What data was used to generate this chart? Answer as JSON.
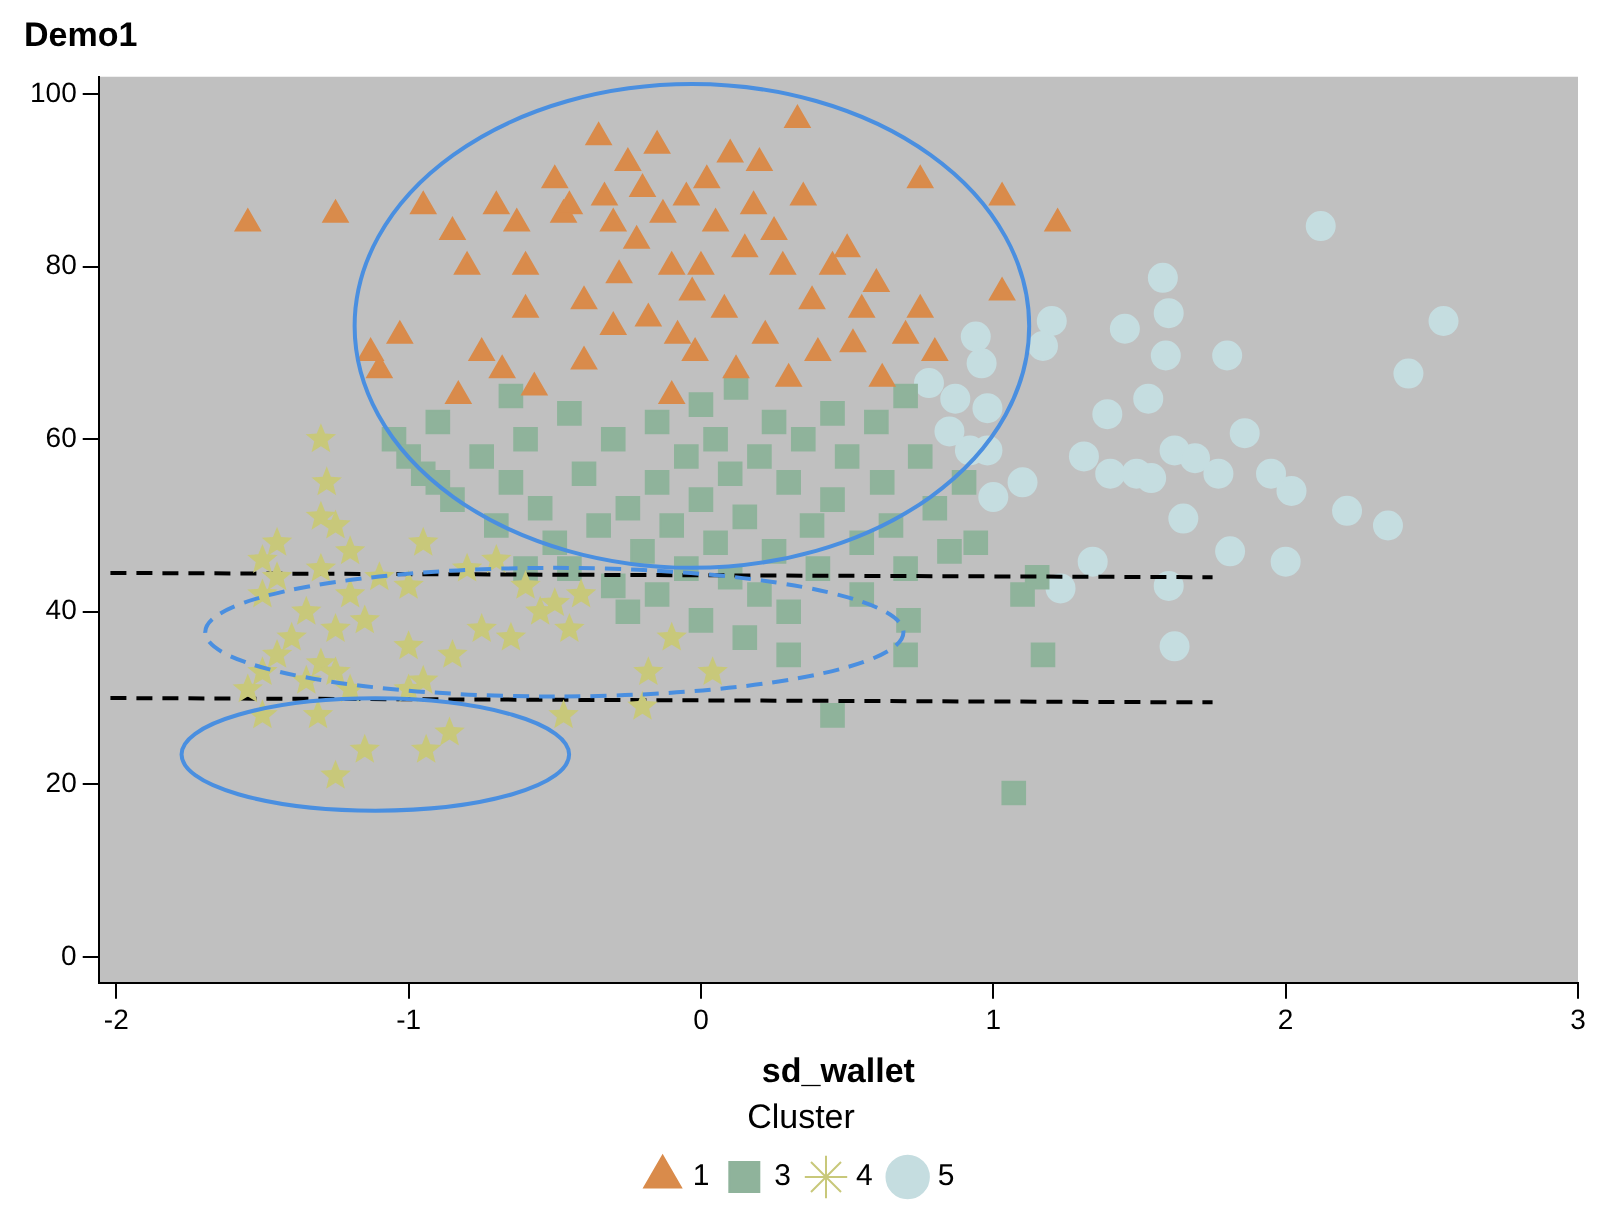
{
  "chart_data": {
    "type": "scatter",
    "title": "Demo1",
    "xlabel": "sd_wallet",
    "legend_title": "Cluster",
    "legend": "bottom",
    "grid": false,
    "xlim": [
      -2.06,
      3.0
    ],
    "xticks": [
      -2,
      -1,
      0,
      1,
      2,
      3
    ],
    "ylim": [
      -3,
      102
    ],
    "yticks": [
      0,
      20,
      40,
      60,
      80,
      100
    ],
    "series": [
      {
        "name": "1",
        "color": "#d98b4b",
        "marker": "triangle",
        "x": [
          -1.55,
          -1.25,
          -1.13,
          -1.1,
          -1.03,
          -0.95,
          -0.85,
          -0.83,
          -0.8,
          -0.75,
          -0.7,
          -0.68,
          -0.63,
          -0.6,
          -0.57,
          -0.5,
          -0.47,
          -0.45,
          -0.4,
          -0.35,
          -0.33,
          -0.3,
          -0.3,
          -0.28,
          -0.25,
          -0.22,
          -0.2,
          -0.18,
          -0.15,
          -0.13,
          -0.1,
          -0.08,
          -0.05,
          -0.03,
          0,
          0.02,
          0.05,
          0.08,
          0.1,
          0.12,
          0.15,
          0.18,
          0.2,
          0.22,
          0.25,
          0.28,
          0.33,
          0.35,
          0.38,
          0.4,
          0.45,
          0.5,
          0.52,
          0.55,
          0.6,
          0.62,
          0.7,
          0.75,
          0.75,
          0.8,
          1.03,
          1.03,
          1.22,
          -0.1,
          0.3,
          -0.6,
          -0.4,
          -0.02
        ],
        "values": [
          85,
          86,
          70,
          68,
          72,
          87,
          84,
          65,
          80,
          70,
          87,
          68,
          85,
          80,
          66,
          90,
          86,
          87,
          76,
          95,
          88,
          85,
          73,
          79,
          92,
          83,
          89,
          74,
          94,
          86,
          80,
          72,
          88,
          77,
          80,
          90,
          85,
          75,
          93,
          68,
          82,
          87,
          92,
          72,
          84,
          80,
          97,
          88,
          76,
          70,
          80,
          82,
          71,
          75,
          78,
          67,
          72,
          75,
          90,
          70,
          88,
          77,
          85,
          65,
          67,
          75,
          69,
          70
        ]
      },
      {
        "name": "3",
        "color": "#8fb39b",
        "marker": "square",
        "x": [
          -1.05,
          -1.0,
          -0.95,
          -0.9,
          -0.9,
          -0.85,
          -0.75,
          -0.7,
          -0.65,
          -0.6,
          -0.55,
          -0.5,
          -0.45,
          -0.4,
          -0.35,
          -0.3,
          -0.25,
          -0.25,
          -0.2,
          -0.15,
          -0.15,
          -0.1,
          -0.05,
          -0.05,
          0,
          0,
          0,
          0.05,
          0.05,
          0.1,
          0.1,
          0.12,
          0.15,
          0.2,
          0.2,
          0.25,
          0.25,
          0.3,
          0.3,
          0.35,
          0.38,
          0.4,
          0.45,
          0.45,
          0.45,
          0.5,
          0.55,
          0.55,
          0.6,
          0.62,
          0.65,
          0.7,
          0.7,
          0.75,
          0.8,
          0.85,
          0.9,
          1.07,
          1.1,
          1.15,
          1.17,
          -0.65,
          -0.45,
          -0.3,
          0.15,
          -0.15,
          0.3,
          -0.6,
          0.94,
          0.71,
          0.7
        ],
        "values": [
          60,
          58,
          56,
          62,
          55,
          53,
          58,
          50,
          55,
          60,
          52,
          48,
          45,
          56,
          50,
          60,
          52,
          40,
          47,
          62,
          55,
          50,
          58,
          45,
          64,
          53,
          39,
          60,
          48,
          56,
          44,
          66,
          51,
          58,
          42,
          62,
          47,
          55,
          40,
          60,
          50,
          45,
          63,
          53,
          28,
          58,
          48,
          42,
          62,
          55,
          50,
          65,
          45,
          58,
          52,
          47,
          55,
          19,
          42,
          44,
          35,
          65,
          63,
          43,
          37,
          42,
          35,
          45,
          48,
          39,
          35
        ]
      },
      {
        "name": "4",
        "color": "#c8c87a",
        "marker": "star",
        "x": [
          -1.3,
          -1.28,
          -1.3,
          -1.25,
          -1.45,
          -1.5,
          -1.45,
          -1.3,
          -1.2,
          -1.5,
          -1.35,
          -1.25,
          -1.15,
          -1.4,
          -1.45,
          -1.3,
          -1.25,
          -1.5,
          -1.55,
          -1.35,
          -1.2,
          -1.0,
          -0.95,
          -1.5,
          -1.31,
          -1.25,
          -1.15,
          -0.94,
          -0.86,
          -1.1,
          -1.0,
          -0.95,
          -0.8,
          -0.7,
          -0.6,
          -0.55,
          -0.5,
          -0.75,
          -0.65,
          -0.45,
          -0.47,
          -0.41,
          -0.18,
          -0.2,
          -0.1,
          -1.0,
          -1.2,
          -0.85,
          0.04
        ],
        "values": [
          60,
          55,
          51,
          50,
          48,
          46,
          44,
          45,
          47,
          42,
          40,
          38,
          39,
          37,
          35,
          34,
          33,
          33,
          31,
          32,
          31,
          31,
          32,
          28,
          28,
          21,
          24,
          24,
          26,
          44,
          43,
          48,
          45,
          46,
          43,
          40,
          41,
          38,
          37,
          38,
          28,
          42,
          33,
          29,
          37,
          36,
          42,
          35,
          33
        ]
      },
      {
        "name": "5",
        "color": "#c5dde0",
        "marker": "circle",
        "x": [
          2.12,
          1.58,
          1.6,
          1.45,
          1.59,
          1.8,
          2.54,
          2.42,
          1.53,
          1.39,
          1.86,
          1.4,
          1.49,
          1.54,
          1.62,
          1.69,
          1.77,
          1.95,
          2.02,
          2.21,
          2.35,
          1.34,
          1.81,
          2.0,
          1.6,
          1.62,
          1.65,
          1.2,
          1.17,
          0.94,
          0.96,
          0.78,
          0.87,
          0.98,
          0.85,
          0.92,
          0.98,
          1.1,
          1.0,
          1.31,
          1.23
        ],
        "values": [
          84.7,
          78.7,
          74.6,
          72.8,
          69.7,
          69.7,
          73.7,
          67.6,
          64.7,
          62.9,
          60.7,
          56,
          56,
          55.5,
          58.7,
          57.8,
          56,
          56,
          54,
          51.7,
          50,
          45.8,
          47,
          45.8,
          43,
          36,
          50.8,
          73.7,
          70.8,
          71.9,
          68.8,
          66.5,
          64.7,
          63.6,
          60.9,
          58.7,
          58.7,
          55,
          53.3,
          58,
          42.7
        ]
      },
      {
        "type": "line",
        "color": "#000000",
        "line_style": "dashed",
        "marker": "none",
        "x": [
          -2.02,
          1.75
        ],
        "values": [
          44.5,
          44
        ]
      },
      {
        "type": "line",
        "color": "#000000",
        "line_style": "dashed",
        "marker": "none",
        "x": [
          -2.02,
          1.75
        ],
        "values": [
          30,
          29.5
        ]
      }
    ]
  }
}
